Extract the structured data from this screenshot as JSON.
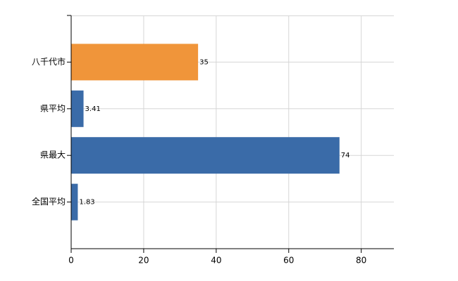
{
  "chart_data": {
    "type": "hbar",
    "categories": [
      "八千代市",
      "県平均",
      "県最大",
      "全国平均"
    ],
    "values": [
      35,
      3.41,
      74,
      1.83
    ],
    "colors": [
      "#f0953a",
      "#3a6ba8",
      "#3a6ba8",
      "#3a6ba8"
    ],
    "xlim": [
      0,
      89
    ],
    "xticks": [
      0,
      20,
      40,
      60,
      80
    ],
    "grid": true
  }
}
